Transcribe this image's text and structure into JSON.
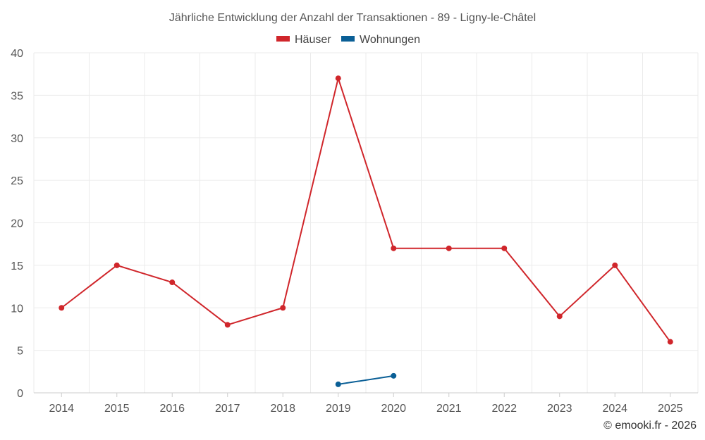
{
  "chart_data": {
    "type": "line",
    "title": "Jährliche Entwicklung der Anzahl der Transaktionen - 89 - Ligny-le-Châtel",
    "categories": [
      "2014",
      "2015",
      "2016",
      "2017",
      "2018",
      "2019",
      "2020",
      "2021",
      "2022",
      "2023",
      "2024",
      "2025"
    ],
    "series": [
      {
        "name": "Häuser",
        "color": "#d0262b",
        "values": [
          10,
          15,
          13,
          8,
          10,
          37,
          17,
          17,
          17,
          9,
          15,
          6
        ]
      },
      {
        "name": "Wohnungen",
        "color": "#0a5f96",
        "values": [
          null,
          null,
          null,
          null,
          null,
          1,
          2,
          null,
          null,
          null,
          null,
          null
        ]
      }
    ],
    "yticks": [
      0,
      5,
      10,
      15,
      20,
      25,
      30,
      35,
      40
    ],
    "ylim": [
      0,
      40
    ],
    "xlabel": "",
    "ylabel": "",
    "grid": true,
    "legend_position": "top-center"
  },
  "credit": "© emooki.fr - 2026"
}
